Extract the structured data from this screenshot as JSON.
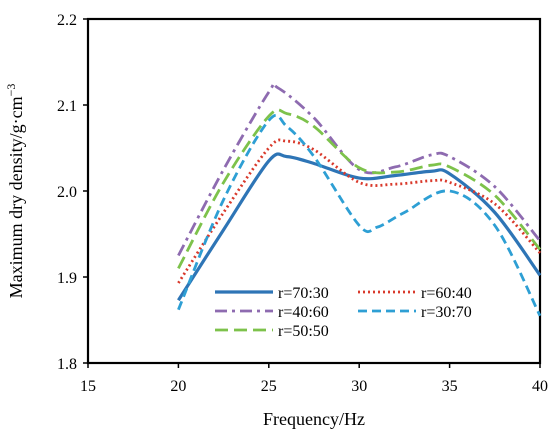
{
  "chart_data": {
    "type": "line",
    "xlabel": "Frequency/Hz",
    "ylabel": "Maximum dry density/g·cm",
    "ylabel_superscript": "−3",
    "xlim": [
      15,
      40
    ],
    "ylim": [
      1.8,
      2.2
    ],
    "x_ticks": [
      "15",
      "20",
      "25",
      "30",
      "35",
      "40"
    ],
    "y_ticks": [
      "1.8",
      "1.9",
      "2.0",
      "2.1",
      "2.2"
    ],
    "grid": false,
    "legend_position": "bottom-inside",
    "series": [
      {
        "name": "r=70:30",
        "color": "#2E75B6",
        "dash": "solid",
        "x": [
          20,
          22.5,
          25,
          26,
          27.5,
          30,
          32,
          34,
          35,
          37.5,
          40
        ],
        "y": [
          1.873,
          1.955,
          2.035,
          2.04,
          2.032,
          2.015,
          2.018,
          2.023,
          2.02,
          1.975,
          1.902
        ]
      },
      {
        "name": "r=60:40",
        "color": "#D9392B",
        "dash": "dot",
        "x": [
          20,
          22.5,
          25,
          26,
          27.5,
          30,
          32,
          34,
          35,
          37.5,
          40
        ],
        "y": [
          1.893,
          1.975,
          2.05,
          2.058,
          2.048,
          2.01,
          2.008,
          2.012,
          2.01,
          1.985,
          1.928
        ]
      },
      {
        "name": "r=40:60",
        "color": "#8E6BB0",
        "dash": "dashdot",
        "x": [
          20,
          22.5,
          25,
          25.5,
          27.5,
          30,
          32,
          34,
          35,
          37.5,
          40
        ],
        "y": [
          1.925,
          2.025,
          2.115,
          2.12,
          2.085,
          2.025,
          2.028,
          2.042,
          2.04,
          2.005,
          1.942
        ]
      },
      {
        "name": "r=30:70",
        "color": "#2E9FD4",
        "dash": "dash",
        "x": [
          20,
          22.5,
          25,
          26,
          27.5,
          30,
          31,
          32.5,
          35,
          37.5,
          40
        ],
        "y": [
          1.862,
          1.99,
          2.082,
          2.075,
          2.04,
          1.96,
          1.958,
          1.975,
          2.0,
          1.96,
          1.855
        ]
      },
      {
        "name": "r=50:50",
        "color": "#7DC24B",
        "dash": "longdash",
        "x": [
          20,
          22.5,
          25,
          26,
          27.5,
          30,
          32,
          34,
          35,
          37.5,
          40
        ],
        "y": [
          1.91,
          2.01,
          2.087,
          2.09,
          2.075,
          2.027,
          2.022,
          2.03,
          2.028,
          1.995,
          1.932
        ]
      }
    ],
    "legend_order": [
      0,
      1,
      2,
      3,
      4
    ]
  }
}
